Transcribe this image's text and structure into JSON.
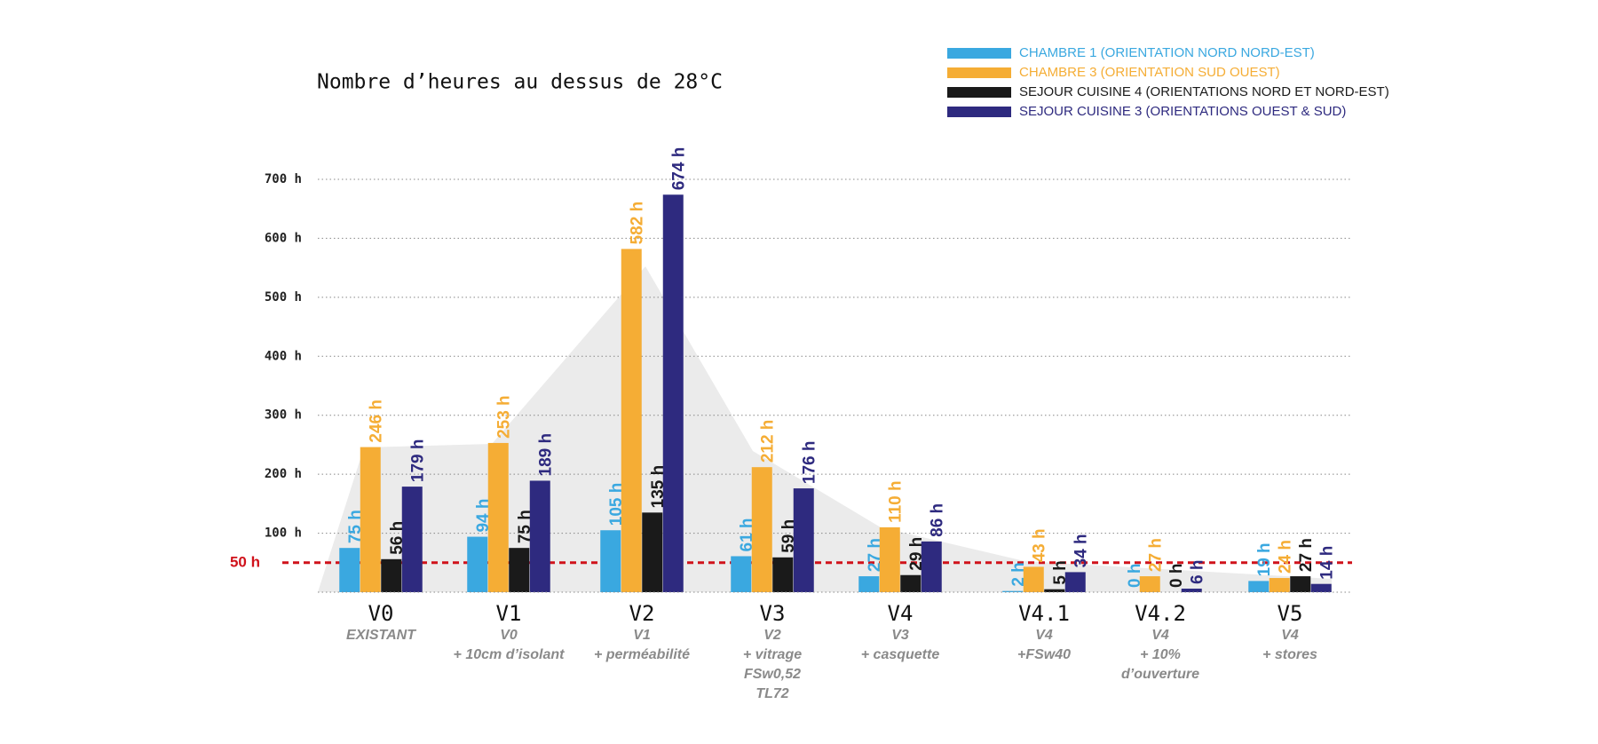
{
  "chart_data": {
    "type": "bar",
    "title": "Nombre d’heures au dessus de 28°C",
    "categories": [
      "V0",
      "V1",
      "V2",
      "V3",
      "V4",
      "V4.1",
      "V4.2",
      "V5"
    ],
    "category_notes": [
      [
        "EXISTANT"
      ],
      [
        "V0",
        "+ 10cm d’isolant"
      ],
      [
        "V1",
        "+ perméabilité"
      ],
      [
        "V2",
        "+ vitrage",
        "FSw0,52",
        "TL72"
      ],
      [
        "V3",
        "+ casquette"
      ],
      [
        "V4",
        "+FSw40"
      ],
      [
        "V4",
        "+ 10%",
        "d’ouverture"
      ],
      [
        "V4",
        "+ stores"
      ]
    ],
    "series": [
      {
        "name": "CHAMBRE 1 (ORIENTATION NORD NORD-EST)",
        "color": "#3aa8e0",
        "values": [
          75,
          94,
          105,
          61,
          27,
          2,
          0,
          19
        ],
        "value_labels": [
          "75 h",
          "94 h",
          "105 h",
          "61 h",
          "27 h",
          "2 h",
          "0 h",
          "19 h"
        ]
      },
      {
        "name": "CHAMBRE 3 (ORIENTATION SUD OUEST)",
        "color": "#f5ad35",
        "values": [
          246,
          253,
          582,
          212,
          110,
          43,
          27,
          24
        ],
        "value_labels": [
          "246 h",
          "253 h",
          "582 h",
          "212 h",
          "110 h",
          "43 h",
          "27 h",
          "24 h"
        ]
      },
      {
        "name": "SEJOUR CUISINE 4 (ORIENTATIONS NORD ET NORD-EST)",
        "color": "#1a1a1a",
        "values": [
          56,
          75,
          135,
          59,
          29,
          5,
          0,
          27
        ],
        "value_labels": [
          "56 h",
          "75 h",
          "135 h",
          "59 h",
          "29 h",
          "5 h",
          "0 h",
          "27 h"
        ]
      },
      {
        "name": "SEJOUR CUISINE 3 (ORIENTATIONS OUEST & SUD)",
        "color": "#2e2a7f",
        "values": [
          179,
          189,
          674,
          176,
          86,
          34,
          6,
          14
        ],
        "value_labels": [
          "179 h",
          "189 h",
          "674 h",
          "176 h",
          "86 h",
          "34 h",
          "6 h",
          "14 h"
        ]
      }
    ],
    "ylim": [
      0,
      700
    ],
    "yticks": [
      {
        "value": 100,
        "label": "100 h"
      },
      {
        "value": 200,
        "label": "200 h"
      },
      {
        "value": 300,
        "label": "300 h"
      },
      {
        "value": 400,
        "label": "400 h"
      },
      {
        "value": 500,
        "label": "500 h"
      },
      {
        "value": 600,
        "label": "600 h"
      },
      {
        "value": 700,
        "label": "700 h"
      }
    ],
    "grid": true,
    "reference_line": {
      "value": 50,
      "label": "50 h",
      "color": "#d0121b"
    },
    "legend": "top-right"
  }
}
